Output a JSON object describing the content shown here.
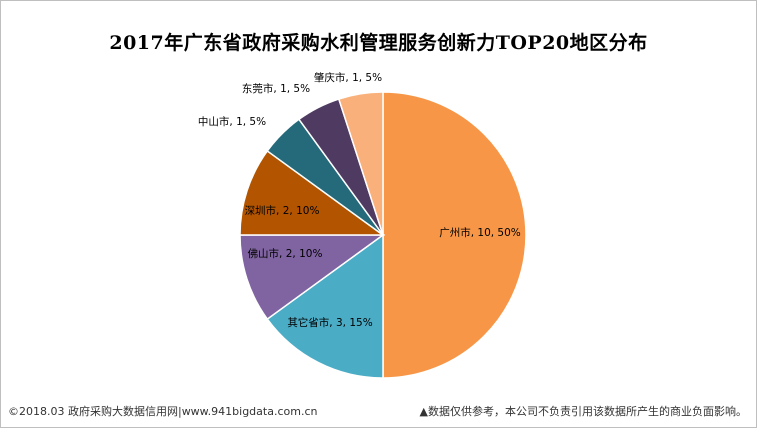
{
  "chart_data": {
    "type": "pie",
    "title": "2017年广东省政府采购水利管理服务创新力TOP20地区分布",
    "slices": [
      {
        "label": "广州市, 10, 50%",
        "name": "广州市",
        "value": 10,
        "percent": 50,
        "color": "#F79646"
      },
      {
        "label": "其它省市, 3, 15%",
        "name": "其它省市",
        "value": 3,
        "percent": 15,
        "color": "#4BACC6"
      },
      {
        "label": "佛山市, 2, 10%",
        "name": "佛山市",
        "value": 2,
        "percent": 10,
        "color": "#8064A2"
      },
      {
        "label": "深圳市, 2, 10%",
        "name": "深圳市",
        "value": 2,
        "percent": 10,
        "color": "#B35500"
      },
      {
        "label": "中山市, 1, 5%",
        "name": "中山市",
        "value": 1,
        "percent": 5,
        "color": "#246A7A"
      },
      {
        "label": "东莞市, 1, 5%",
        "name": "东莞市",
        "value": 1,
        "percent": 5,
        "color": "#4F3B62"
      },
      {
        "label": "肇庆市, 1, 5%",
        "name": "肇庆市",
        "value": 1,
        "percent": 5,
        "color": "#FAB07A"
      }
    ],
    "legend": "none"
  },
  "footer": {
    "source": "©2018.03 政府采购大数据信用网|www.941bigdata.com.cn",
    "disclaimer": "▲数据仅供参考，本公司不负责引用该数据所产生的商业负面影响。"
  }
}
